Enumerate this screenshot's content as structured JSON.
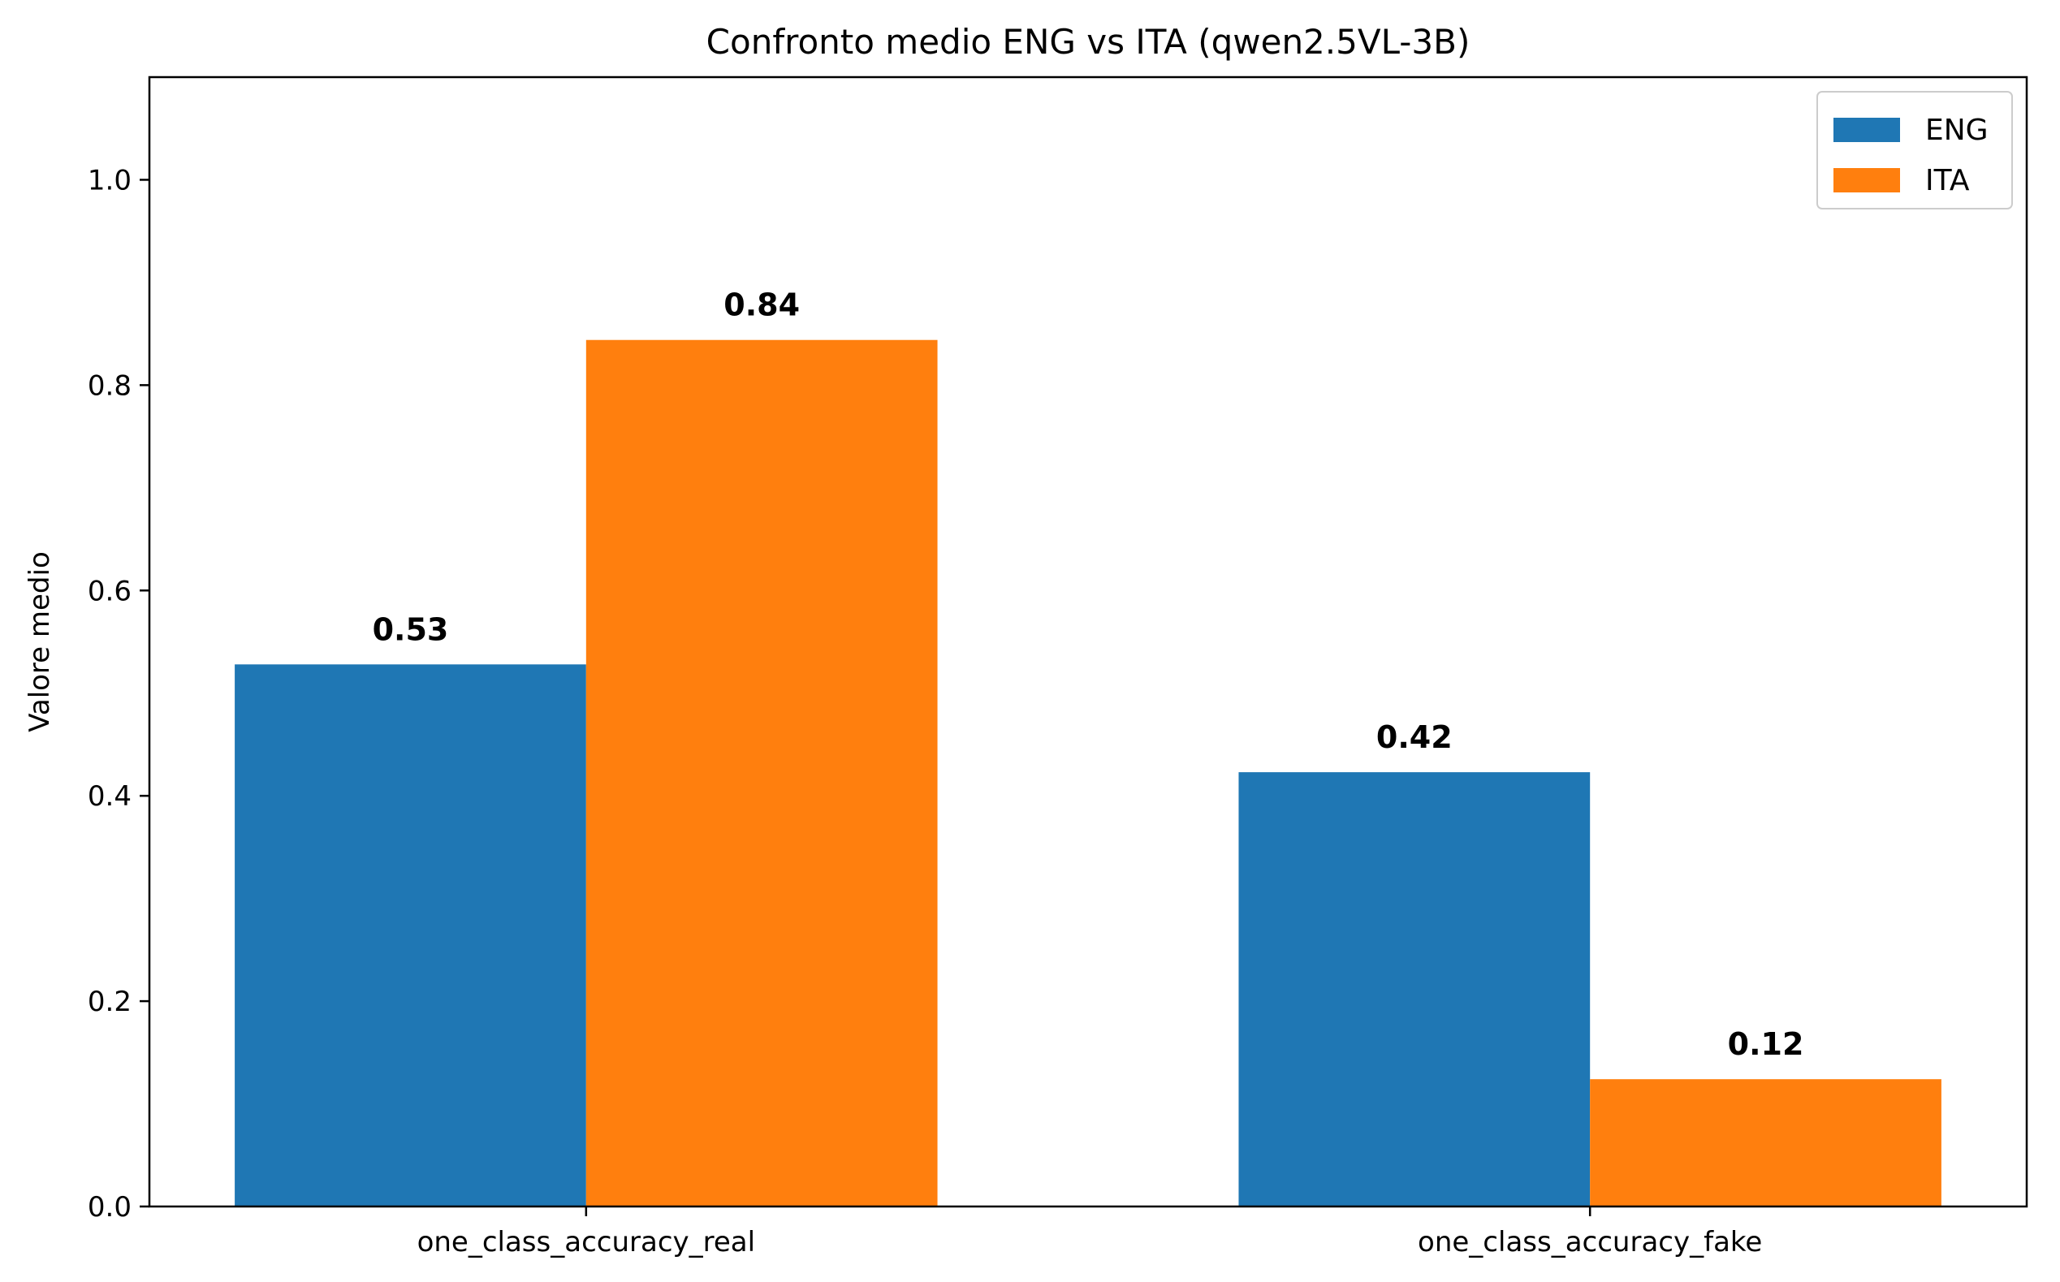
{
  "chart_data": {
    "type": "bar",
    "title": "Confronto medio ENG vs ITA (qwen2.5VL-3B)",
    "xlabel": "",
    "ylabel": "Valore medio",
    "categories": [
      "one_class_accuracy_real",
      "one_class_accuracy_fake"
    ],
    "series": [
      {
        "name": "ENG",
        "color": "#1f77b4",
        "values": [
          0.528,
          0.423
        ],
        "labels": [
          "0.53",
          "0.42"
        ]
      },
      {
        "name": "ITA",
        "color": "#ff7f0e",
        "values": [
          0.844,
          0.124
        ],
        "labels": [
          "0.84",
          "0.12"
        ]
      }
    ],
    "ylim": [
      0,
      1.1
    ],
    "yticks": [
      0.0,
      0.2,
      0.4,
      0.6,
      0.8,
      1.0
    ],
    "ytick_labels": [
      "0.0",
      "0.2",
      "0.4",
      "0.6",
      "0.8",
      "1.0"
    ],
    "grid": false,
    "legend_position": "top-right"
  }
}
